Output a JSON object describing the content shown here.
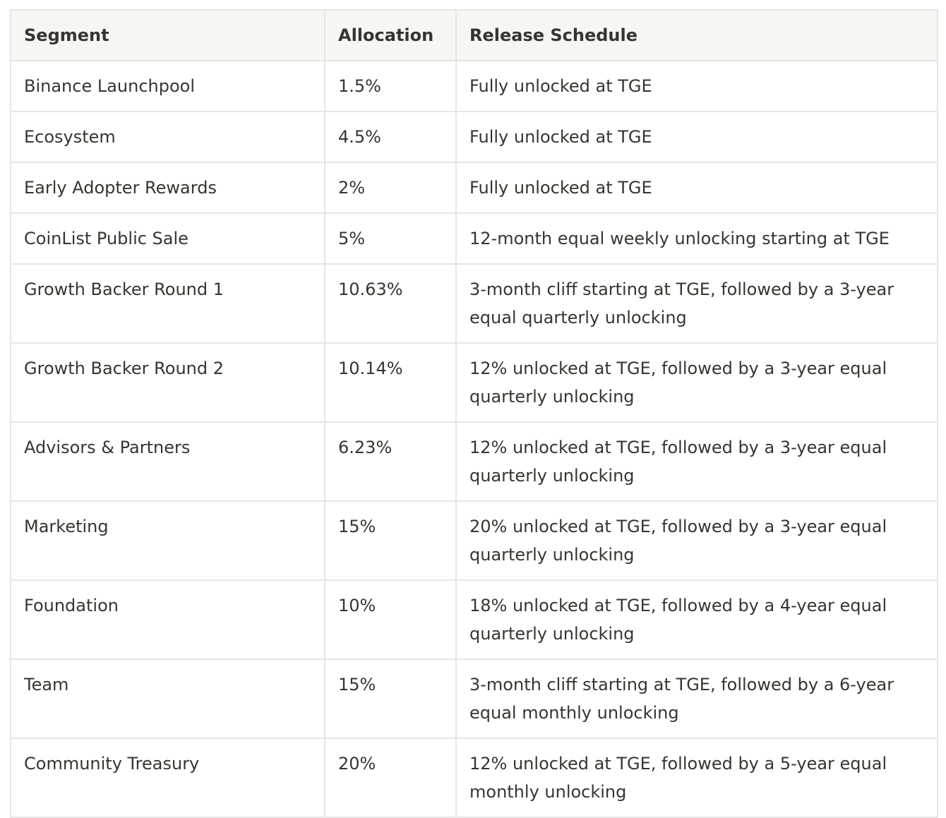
{
  "table": {
    "header": [
      "Segment",
      "Allocation",
      "Release Schedule"
    ],
    "rows": [
      [
        "Binance Launchpool",
        "1.5%",
        "Fully unlocked at TGE"
      ],
      [
        "Ecosystem",
        "4.5%",
        "Fully unlocked at TGE"
      ],
      [
        "Early Adopter Rewards",
        "2%",
        "Fully unlocked at TGE"
      ],
      [
        "CoinList Public Sale",
        "5%",
        "12-month equal weekly unlocking starting at TGE"
      ],
      [
        "Growth Backer Round 1",
        "10.63%",
        "3-month cliff starting at TGE, followed by a 3-year equal quarterly unlocking"
      ],
      [
        "Growth Backer Round 2",
        "10.14%",
        "12% unlocked at TGE, followed by a 3-year equal quarterly unlocking"
      ],
      [
        "Advisors & Partners",
        "6.23%",
        "12% unlocked at TGE, followed by a 3-year equal quarterly unlocking"
      ],
      [
        "Marketing",
        "15%",
        "20% unlocked at TGE, followed by a 3-year equal quarterly unlocking"
      ],
      [
        "Foundation",
        "10%",
        "18% unlocked at TGE, followed by a 4-year equal quarterly unlocking"
      ],
      [
        "Team",
        "15%",
        "3-month cliff starting at TGE, followed by a 6-year equal monthly unlocking"
      ],
      [
        "Community Treasury",
        "20%",
        "12% unlocked at TGE, followed by a 5-year equal monthly unlocking"
      ]
    ]
  }
}
